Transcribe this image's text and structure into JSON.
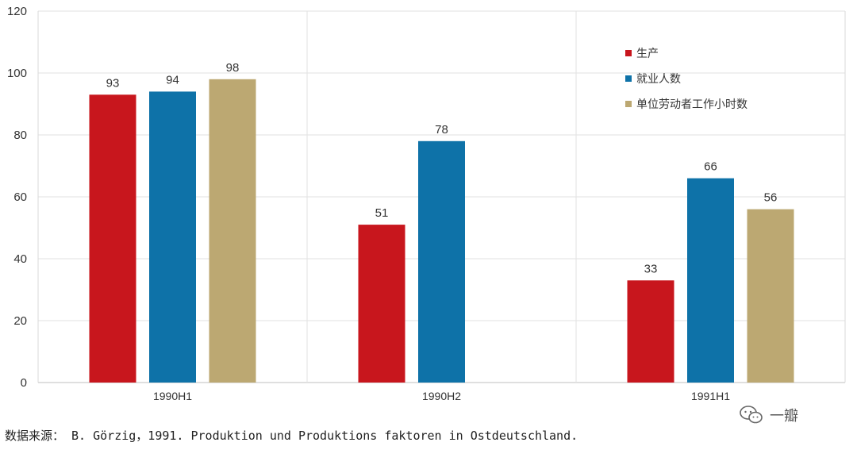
{
  "chart_data": {
    "type": "bar",
    "categories": [
      "1990H1",
      "1990H2",
      "1991H1"
    ],
    "series": [
      {
        "name": "生产",
        "color": "#C8161D",
        "values": [
          93,
          51,
          33
        ]
      },
      {
        "name": "就业人数",
        "color": "#0E72A8",
        "values": [
          94,
          78,
          66
        ]
      },
      {
        "name": "单位劳动者工作小时数",
        "color": "#BCA872",
        "values": [
          98,
          null,
          56
        ]
      }
    ],
    "ylim": [
      0,
      120
    ],
    "yticks": [
      0,
      20,
      40,
      60,
      80,
      100,
      120
    ],
    "grid": true,
    "legend_position": "top-right"
  },
  "source_note": "数据来源： B. Görzig，1991. Produktion und Produktions faktoren in Ostdeutschland.",
  "watermark": {
    "icon": "wechat-icon",
    "text": "一瓣"
  }
}
